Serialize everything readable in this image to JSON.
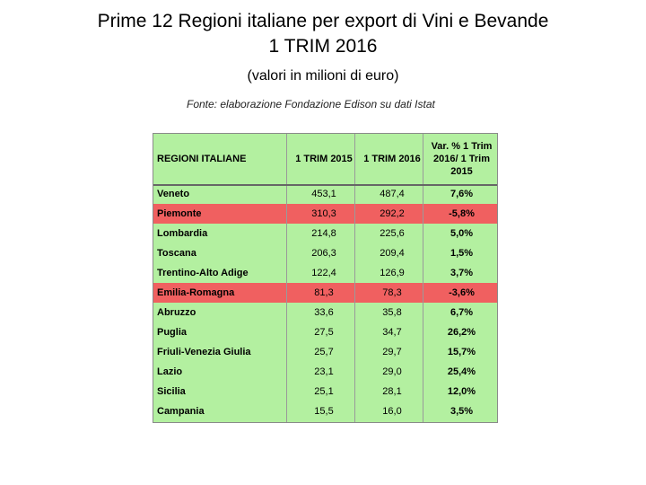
{
  "title_line1": "Prime 12 Regioni italiane per export di Vini e Bevande",
  "title_line2": "1 TRIM 2016",
  "subtitle": "(valori in milioni di euro)",
  "source": "Fonte: elaborazione Fondazione Edison su dati Istat",
  "colors": {
    "positive_row": "#b3f0a0",
    "negative_row": "#f06060"
  },
  "chart_data": {
    "type": "table",
    "columns": [
      "REGIONI ITALIANE",
      "1 TRIM 2015",
      "1 TRIM 2016",
      "Var. % 1 Trim 2016/ 1 Trim 2015"
    ],
    "rows": [
      {
        "region": "Veneto",
        "t2015": "453,1",
        "t2016": "487,4",
        "var": "7,6%",
        "negative": false
      },
      {
        "region": "Piemonte",
        "t2015": "310,3",
        "t2016": "292,2",
        "var": "-5,8%",
        "negative": true
      },
      {
        "region": "Lombardia",
        "t2015": "214,8",
        "t2016": "225,6",
        "var": "5,0%",
        "negative": false
      },
      {
        "region": "Toscana",
        "t2015": "206,3",
        "t2016": "209,4",
        "var": "1,5%",
        "negative": false
      },
      {
        "region": "Trentino-Alto Adige",
        "t2015": "122,4",
        "t2016": "126,9",
        "var": "3,7%",
        "negative": false
      },
      {
        "region": "Emilia-Romagna",
        "t2015": "81,3",
        "t2016": "78,3",
        "var": "-3,6%",
        "negative": true
      },
      {
        "region": "Abruzzo",
        "t2015": "33,6",
        "t2016": "35,8",
        "var": "6,7%",
        "negative": false
      },
      {
        "region": "Puglia",
        "t2015": "27,5",
        "t2016": "34,7",
        "var": "26,2%",
        "negative": false
      },
      {
        "region": "Friuli-Venezia Giulia",
        "t2015": "25,7",
        "t2016": "29,7",
        "var": "15,7%",
        "negative": false
      },
      {
        "region": "Lazio",
        "t2015": "23,1",
        "t2016": "29,0",
        "var": "25,4%",
        "negative": false
      },
      {
        "region": "Sicilia",
        "t2015": "25,1",
        "t2016": "28,1",
        "var": "12,0%",
        "negative": false
      },
      {
        "region": "Campania",
        "t2015": "15,5",
        "t2016": "16,0",
        "var": "3,5%",
        "negative": false
      }
    ]
  }
}
